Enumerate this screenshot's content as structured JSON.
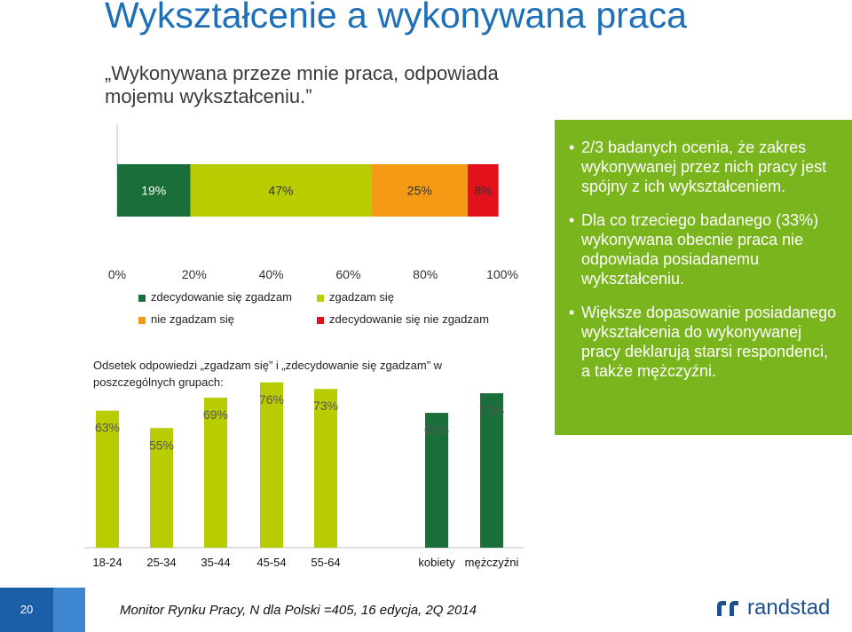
{
  "header": {
    "title": "Wykształcenie a wykonywana praca",
    "subtitle": "„Wykonywana przeze mnie praca, odpowiada mojemu wykształceniu.”"
  },
  "colors": {
    "dark_green": "#1a6e3a",
    "light_green": "#b8cc00",
    "orange": "#f59a14",
    "red": "#e3111b",
    "box_green": "#7ab51d",
    "title_blue": "#1d6fb8"
  },
  "note": "Odsetek odpowiedzi „zgadzam się” i „zdecydowanie się zgadzam” w poszczególnych grupach:",
  "chart_data": [
    {
      "type": "bar",
      "orientation": "horizontal-stacked",
      "series": [
        {
          "name": "zdecydowanie się zgadzam",
          "values": [
            19
          ],
          "label": "19%"
        },
        {
          "name": "zgadzam się",
          "values": [
            47
          ],
          "label": "47%"
        },
        {
          "name": "nie zgadzam się",
          "values": [
            25
          ],
          "label": "25%"
        },
        {
          "name": "zdecydowanie się nie zgadzam",
          "values": [
            8
          ],
          "label": "8%"
        }
      ],
      "xlim": [
        0,
        100
      ],
      "ticks": [
        "0%",
        "20%",
        "40%",
        "60%",
        "80%",
        "100%"
      ],
      "legend": [
        "zdecydowanie się zgadzam",
        "zgadzam się",
        "nie zgadzam się",
        "zdecydowanie się nie zgadzam"
      ]
    },
    {
      "type": "bar",
      "categories": [
        "18-24",
        "25-34",
        "35-44",
        "45-54",
        "55-64",
        "kobiety",
        "mężczyźni"
      ],
      "values": [
        63,
        55,
        69,
        76,
        73,
        62,
        71
      ],
      "labels": [
        "63%",
        "55%",
        "69%",
        "76%",
        "73%",
        "62%",
        "71%"
      ],
      "ylim": [
        0,
        100
      ]
    }
  ],
  "info": {
    "bullets": [
      "2/3 badanych ocenia, że zakres wykonywanej przez nich pracy jest spójny z ich wykształceniem.",
      "Dla co trzeciego badanego (33%) wykonywana obecnie praca nie odpowiada posiadanemu wykształceniu.",
      "Większe dopasowanie posiadanego wykształcenia do wykonywanej pracy deklarują starsi respondenci, a także mężczyźni."
    ],
    "bullet_char": "•"
  },
  "footer": {
    "page_number": "20",
    "source": "Monitor Rynku Pracy, N dla Polski =405, 16 edycja, 2Q 2014",
    "logo_text": "randstad",
    "logo_icon": "randstad-logo-icon"
  }
}
